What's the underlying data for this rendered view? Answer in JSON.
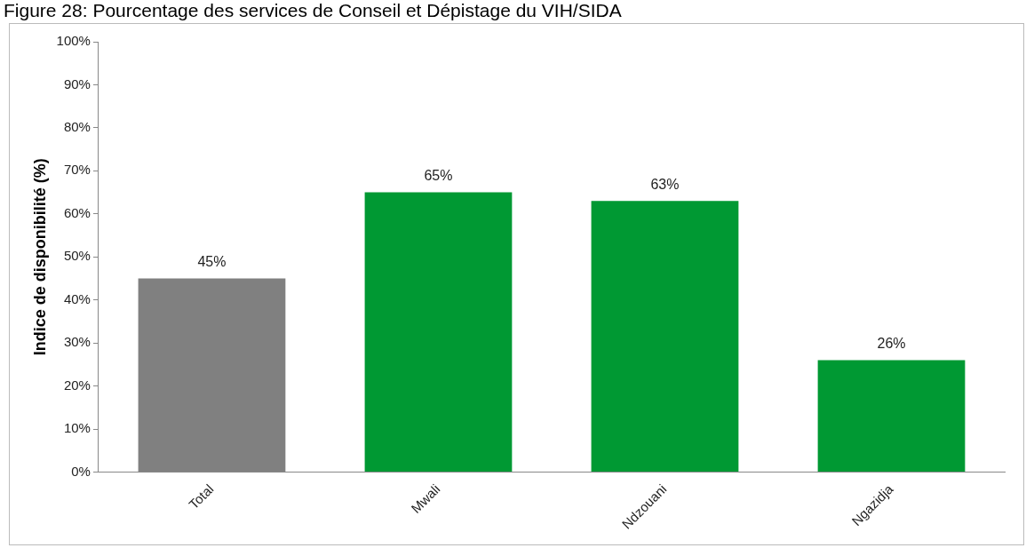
{
  "chart_data": {
    "type": "bar",
    "title": "Figure 28: Pourcentage des services de Conseil et Dépistage du VIH/SIDA",
    "ylabel": "Indice de disponibilité (%)",
    "categories": [
      "Total",
      "Mwali",
      "Ndzouani",
      "Ngazidja"
    ],
    "values": [
      45,
      65,
      63,
      26
    ],
    "colors": [
      "#808080",
      "#009933",
      "#009933",
      "#009933"
    ],
    "value_labels": [
      "45%",
      "65%",
      "63%",
      "26%"
    ],
    "ylim": [
      0,
      100
    ],
    "yticks": [
      {
        "value": 0,
        "label": "0%"
      },
      {
        "value": 10,
        "label": "10%"
      },
      {
        "value": 20,
        "label": "20%"
      },
      {
        "value": 30,
        "label": "30%"
      },
      {
        "value": 40,
        "label": "40%"
      },
      {
        "value": 50,
        "label": "50%"
      },
      {
        "value": 60,
        "label": "60%"
      },
      {
        "value": 70,
        "label": "70%"
      },
      {
        "value": 80,
        "label": "80%"
      },
      {
        "value": 90,
        "label": "90%"
      },
      {
        "value": 100,
        "label": "100%"
      }
    ],
    "grid": false,
    "legend": false
  }
}
